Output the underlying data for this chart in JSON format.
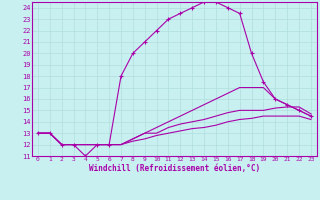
{
  "xlabel": "Windchill (Refroidissement éolien,°C)",
  "background_color": "#c8f0f0",
  "grid_color": "#b0dede",
  "line_color": "#aa00aa",
  "spine_color": "#8800aa",
  "xlim": [
    -0.5,
    23.5
  ],
  "ylim": [
    11,
    24.5
  ],
  "xticks": [
    0,
    1,
    2,
    3,
    4,
    5,
    6,
    7,
    8,
    9,
    10,
    11,
    12,
    13,
    14,
    15,
    16,
    17,
    18,
    19,
    20,
    21,
    22,
    23
  ],
  "yticks": [
    11,
    12,
    13,
    14,
    15,
    16,
    17,
    18,
    19,
    20,
    21,
    22,
    23,
    24
  ],
  "curves": [
    {
      "x": [
        0,
        1,
        2,
        3,
        4,
        5,
        6,
        7,
        8,
        9,
        10,
        11,
        12,
        13,
        14,
        15,
        16,
        17,
        18,
        19,
        20,
        21,
        22,
        23
      ],
      "y": [
        13,
        13,
        12,
        12,
        11,
        12,
        12,
        18,
        20,
        21,
        22,
        23,
        23.5,
        24,
        24.5,
        24.5,
        24,
        23.5,
        20,
        17.5,
        16,
        15.5,
        15,
        14.5
      ],
      "marker": "+"
    },
    {
      "x": [
        0,
        1,
        2,
        3,
        4,
        5,
        6,
        7,
        8,
        9,
        10,
        11,
        12,
        13,
        14,
        15,
        16,
        17,
        18,
        19,
        20,
        21,
        22,
        23
      ],
      "y": [
        13,
        13,
        12,
        12,
        12,
        12,
        12,
        12,
        12.5,
        13,
        13.5,
        14,
        14.5,
        15,
        15.5,
        16,
        16.5,
        17,
        17,
        17,
        16,
        15.5,
        15,
        14.5
      ],
      "marker": null
    },
    {
      "x": [
        0,
        1,
        2,
        3,
        4,
        5,
        6,
        7,
        8,
        9,
        10,
        11,
        12,
        13,
        14,
        15,
        16,
        17,
        18,
        19,
        20,
        21,
        22,
        23
      ],
      "y": [
        13,
        13,
        12,
        12,
        12,
        12,
        12,
        12,
        12.5,
        13,
        13,
        13.5,
        13.8,
        14,
        14.2,
        14.5,
        14.8,
        15,
        15,
        15,
        15.2,
        15.3,
        15.3,
        14.7
      ],
      "marker": null
    },
    {
      "x": [
        0,
        1,
        2,
        3,
        4,
        5,
        6,
        7,
        8,
        9,
        10,
        11,
        12,
        13,
        14,
        15,
        16,
        17,
        18,
        19,
        20,
        21,
        22,
        23
      ],
      "y": [
        13,
        13,
        12,
        12,
        12,
        12,
        12,
        12,
        12.3,
        12.5,
        12.8,
        13,
        13.2,
        13.4,
        13.5,
        13.7,
        14,
        14.2,
        14.3,
        14.5,
        14.5,
        14.5,
        14.5,
        14.2
      ],
      "marker": null
    }
  ],
  "figsize": [
    3.2,
    2.0
  ],
  "dpi": 100
}
